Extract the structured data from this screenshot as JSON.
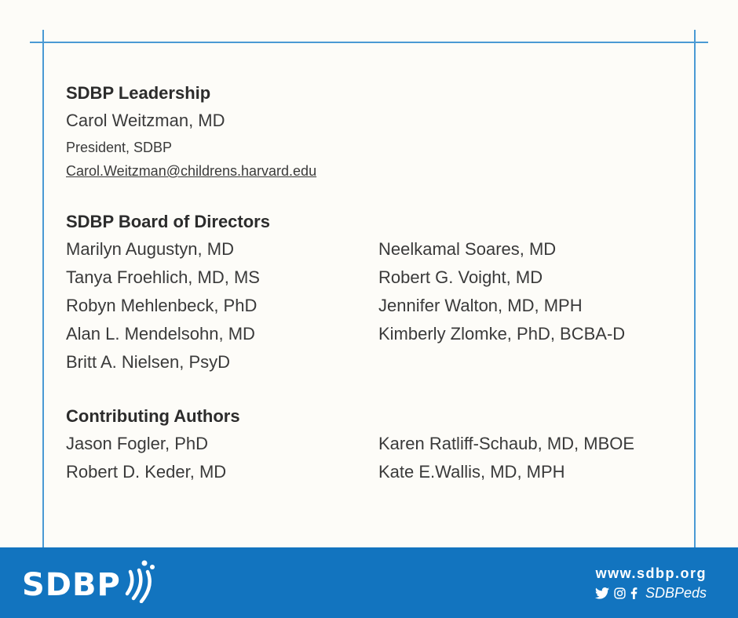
{
  "leadership": {
    "heading": "SDBP Leadership",
    "name": "Carol Weitzman, MD",
    "title": "President, SDBP",
    "email": "Carol.Weitzman@childrens.harvard.edu"
  },
  "board": {
    "heading": "SDBP Board of Directors",
    "left": [
      "Marilyn Augustyn, MD",
      "Tanya Froehlich, MD, MS",
      "Robyn Mehlenbeck, PhD",
      "Alan L. Mendelsohn, MD",
      "Britt A. Nielsen, PsyD"
    ],
    "right": [
      "Neelkamal Soares, MD",
      "Robert G. Voight, MD",
      "Jennifer Walton, MD, MPH",
      "Kimberly Zlomke, PhD, BCBA-D"
    ]
  },
  "authors": {
    "heading": "Contributing Authors",
    "left": [
      "Jason Fogler, PhD",
      "Robert D. Keder, MD"
    ],
    "right": [
      "Karen Ratliff-Schaub, MD, MBOE",
      "Kate E.Wallis, MD, MPH"
    ]
  },
  "footer": {
    "logo_text": "SDBP",
    "url": "www.sdbp.org",
    "handle": "SDBPeds",
    "icons": [
      "twitter-icon",
      "instagram-icon",
      "facebook-icon"
    ]
  },
  "colors": {
    "brand_blue": "#1274bf",
    "frame_line": "#4a9ad4",
    "background": "#fdfcf8"
  }
}
